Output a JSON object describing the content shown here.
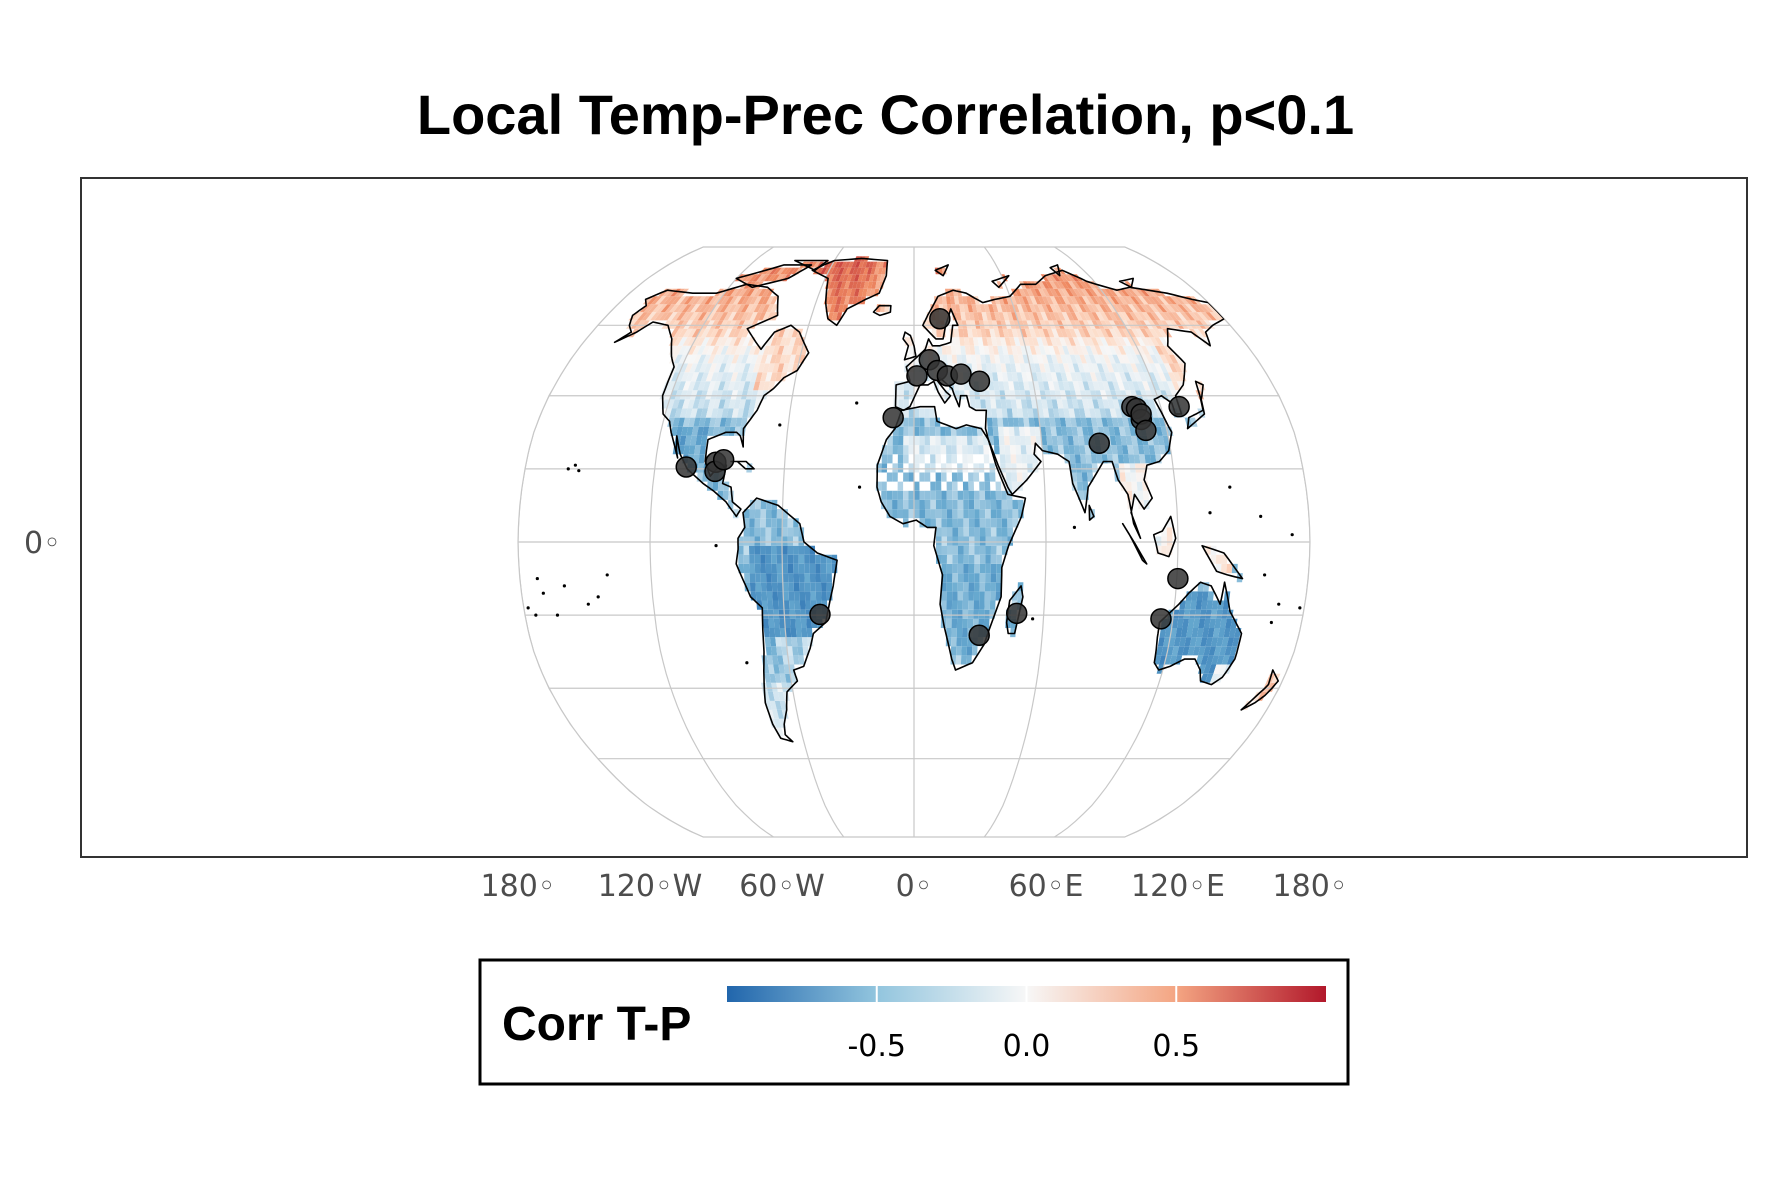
{
  "title": "Local Temp-Prec Correlation, p<0.1",
  "map": {
    "projection": "robinson",
    "graticule": true,
    "x_ticks": [
      {
        "lon": -180,
        "label": "180◦"
      },
      {
        "lon": -120,
        "label": "120◦W"
      },
      {
        "lon": -60,
        "label": "60◦W"
      },
      {
        "lon": 0,
        "label": "0◦"
      },
      {
        "lon": 60,
        "label": "60◦E"
      },
      {
        "lon": 120,
        "label": "120◦E"
      },
      {
        "lon": 180,
        "label": "180◦"
      }
    ],
    "y_ticks": [
      {
        "lat": 0,
        "label": "0◦"
      }
    ],
    "colors": {
      "negative": "#2166ac",
      "neutral": "#f7f7f7",
      "positive": "#b2182b",
      "land_outline": "#000000",
      "grid": "#c8c8c8",
      "site_marker": "#333333"
    },
    "sites": [
      {
        "lon": -105.5,
        "lat": 20.5
      },
      {
        "lon": -92.0,
        "lat": 21.8
      },
      {
        "lon": -92.0,
        "lat": 19.3
      },
      {
        "lon": -88.5,
        "lat": 22.5
      },
      {
        "lon": -43.5,
        "lat": -19.8
      },
      {
        "lon": -10.0,
        "lat": 34.0
      },
      {
        "lon": 1.5,
        "lat": 45.5
      },
      {
        "lon": 8.0,
        "lat": 50.0
      },
      {
        "lon": 12.0,
        "lat": 47.0
      },
      {
        "lon": 17.0,
        "lat": 45.5
      },
      {
        "lon": 24.0,
        "lat": 46.0
      },
      {
        "lon": 33.0,
        "lat": 44.0
      },
      {
        "lon": 15.0,
        "lat": 62.0
      },
      {
        "lon": 47.5,
        "lat": -19.5
      },
      {
        "lon": 30.5,
        "lat": -25.5
      },
      {
        "lon": 87.0,
        "lat": 27.0
      },
      {
        "lon": 106.0,
        "lat": 37.0
      },
      {
        "lon": 108.0,
        "lat": 36.5
      },
      {
        "lon": 109.0,
        "lat": 33.5
      },
      {
        "lon": 109.5,
        "lat": 35.0
      },
      {
        "lon": 110.0,
        "lat": 30.5
      },
      {
        "lon": 129.0,
        "lat": 37.0
      },
      {
        "lon": 120.5,
        "lat": -10.0
      },
      {
        "lon": 114.5,
        "lat": -21.0
      }
    ]
  },
  "legend": {
    "title": "Corr T-P",
    "ticks": [
      {
        "value": -0.5,
        "label": "-0.5"
      },
      {
        "value": 0.0,
        "label": "0.0"
      },
      {
        "value": 0.5,
        "label": "0.5"
      }
    ],
    "range": [
      -1,
      1
    ]
  }
}
